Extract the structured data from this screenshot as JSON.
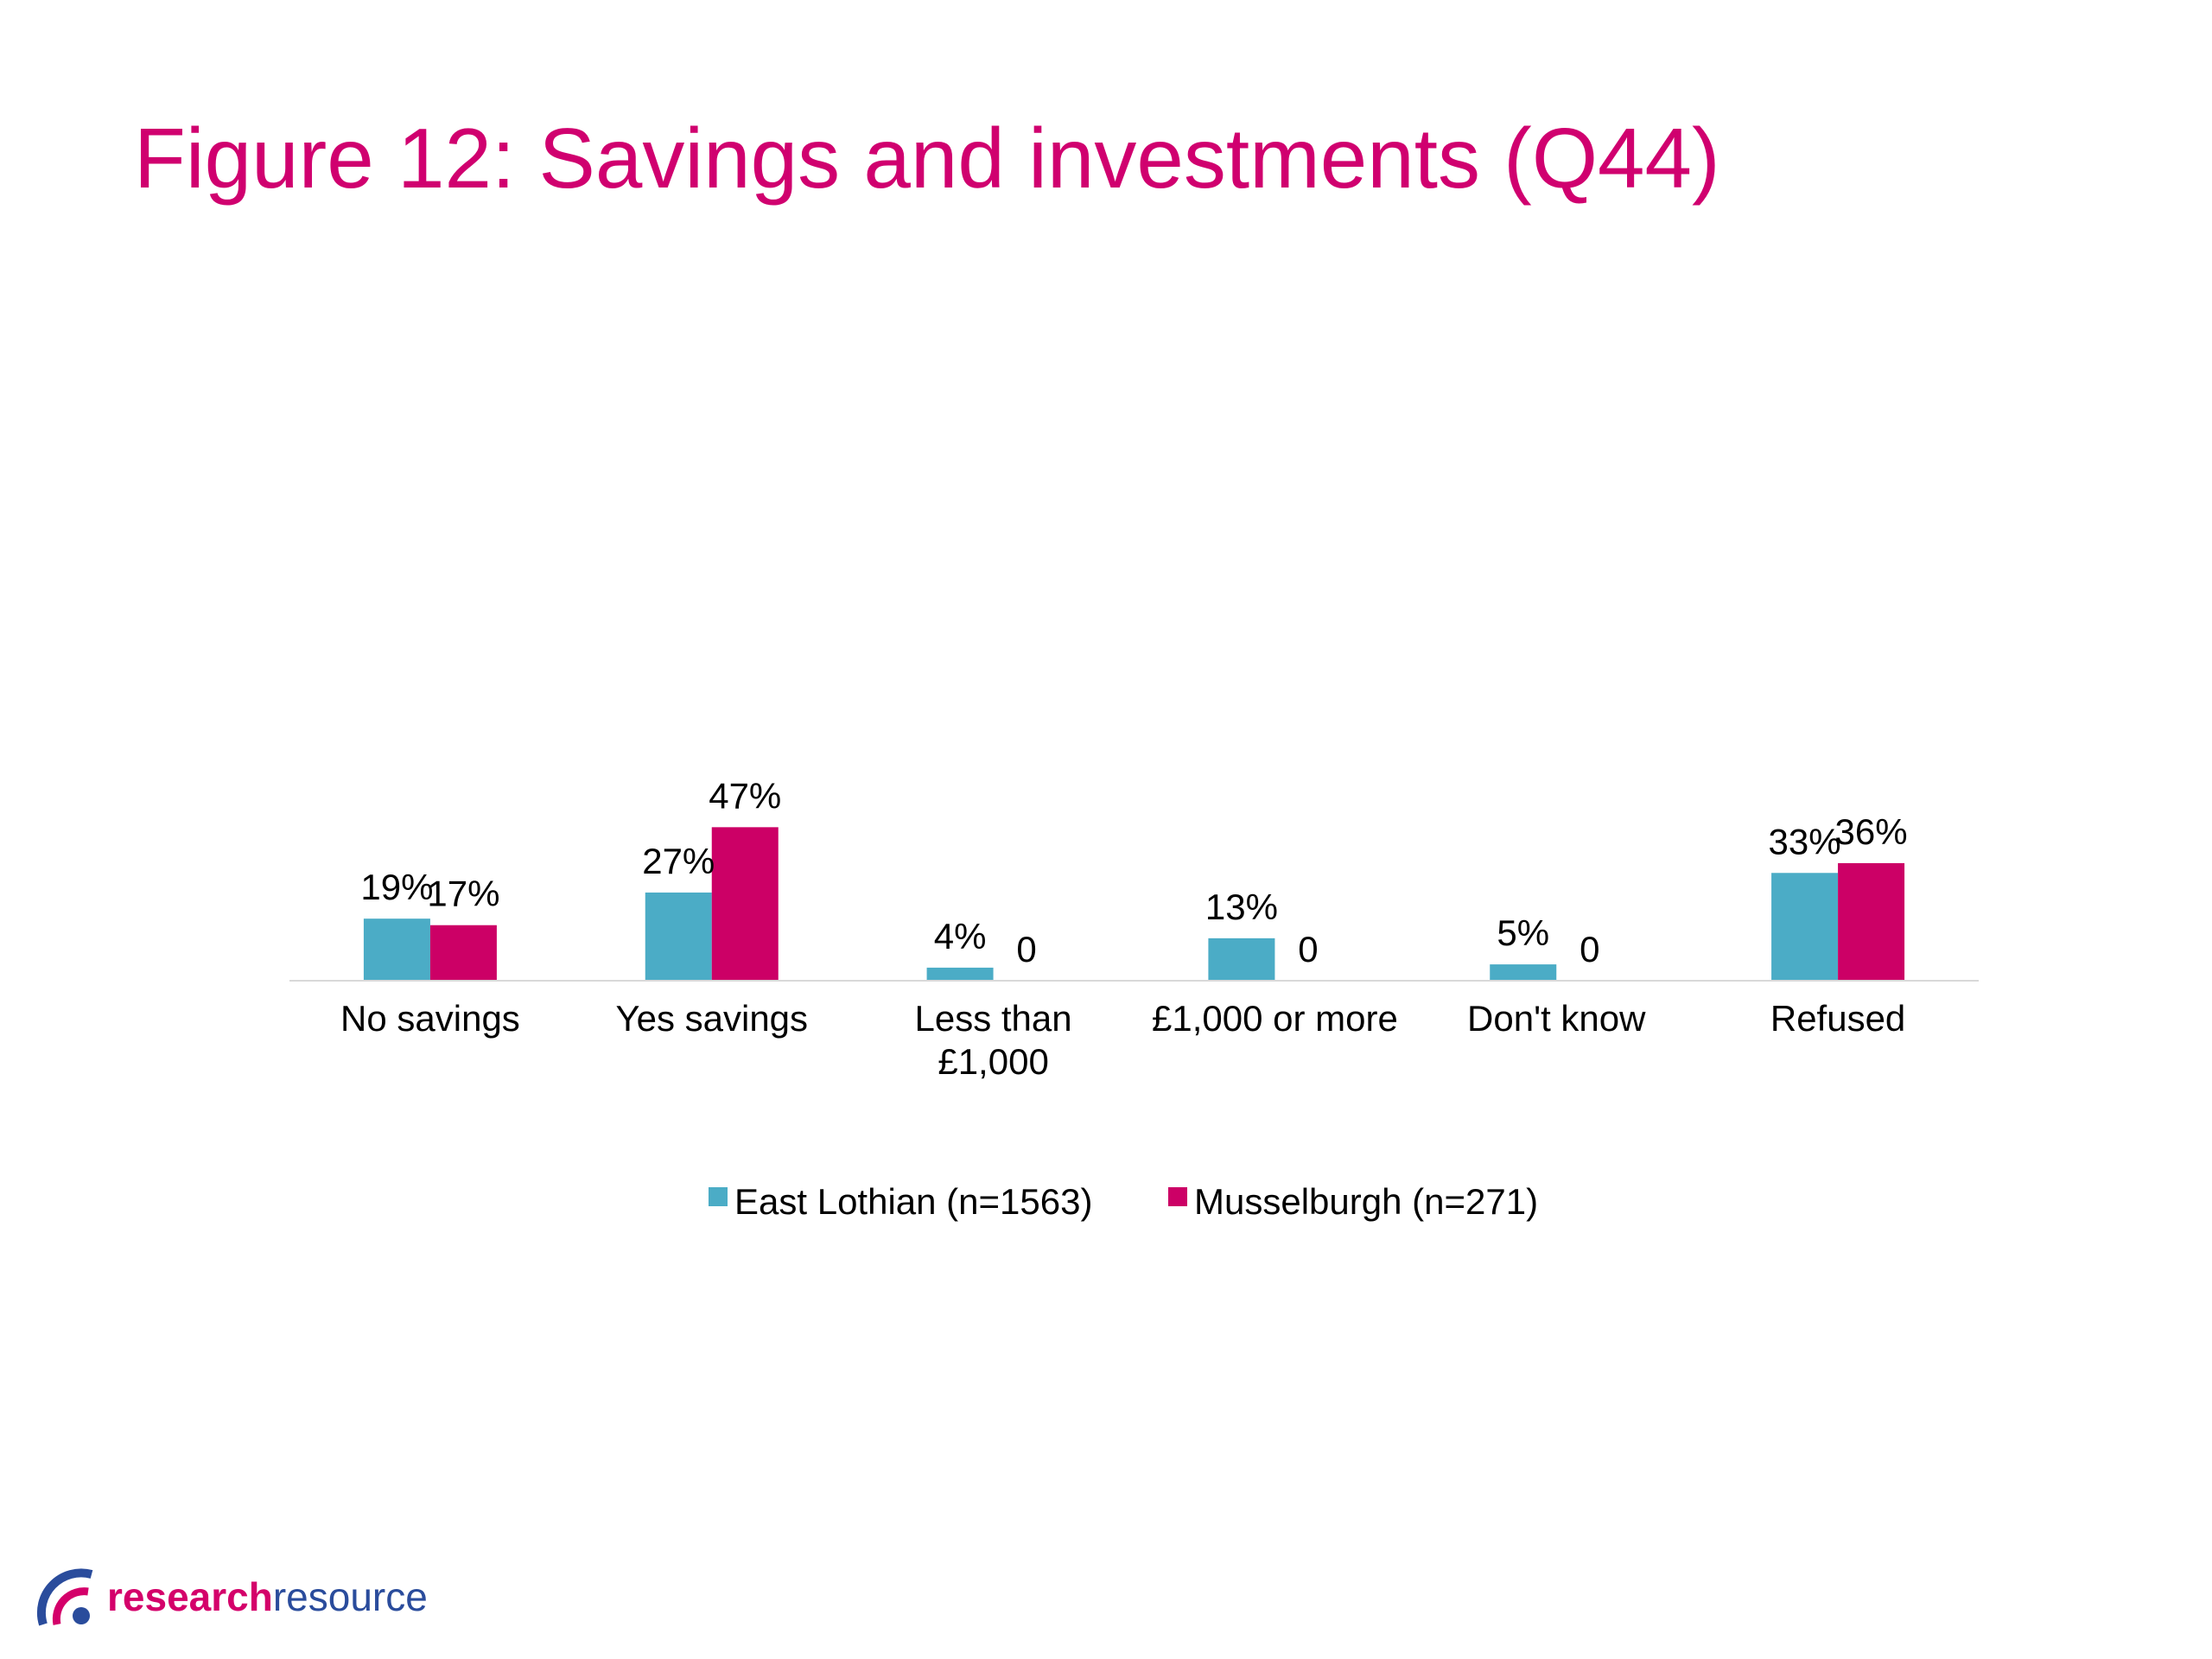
{
  "title": "Figure 12: Savings and investments (Q44)",
  "colors": {
    "title": "#d0006f",
    "series_1": "#4bacc6",
    "series_2": "#cc0066",
    "axis": "#d9d9d9",
    "logo_primary": "#d4006a",
    "logo_secondary": "#2a4c9c"
  },
  "chart_data": {
    "type": "bar",
    "categories": [
      "No savings",
      "Yes savings",
      "Less than £1,000",
      "£1,000 or more",
      "Don't know",
      "Refused"
    ],
    "category_lines": [
      [
        "No savings"
      ],
      [
        "Yes savings"
      ],
      [
        "Less than",
        "£1,000"
      ],
      [
        "£1,000 or more"
      ],
      [
        "Don't know"
      ],
      [
        "Refused"
      ]
    ],
    "series": [
      {
        "name": "East Lothian (n=1563)",
        "values": [
          19,
          27,
          4,
          13,
          5,
          33
        ],
        "labels": [
          "19%",
          "27%",
          "4%",
          "13%",
          "5%",
          "33%"
        ]
      },
      {
        "name": "Musselburgh (n=271)",
        "values": [
          17,
          47,
          0,
          0,
          0,
          36
        ],
        "labels": [
          "17%",
          "47%",
          "0",
          "0",
          "0",
          "36%"
        ]
      }
    ],
    "ylim": [
      0,
      47
    ],
    "grid": false,
    "legend": "bottom"
  },
  "logo": {
    "part1": "research",
    "part2": "resource"
  }
}
